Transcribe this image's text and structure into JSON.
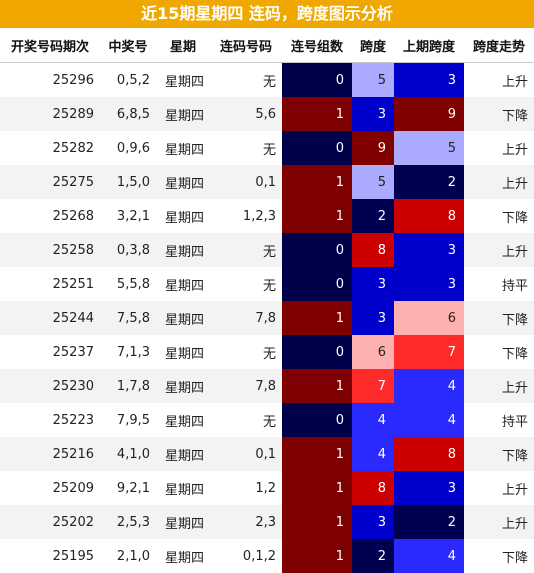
{
  "title": "近15期星期四 连码，跨度图示分析",
  "headers": [
    "开奖号码期次",
    "中奖号",
    "星期",
    "连码号码",
    "连号组数",
    "跨度",
    "上期跨度",
    "跨度走势"
  ],
  "colors": {
    "title_bg": "#f0a800",
    "group_0": "#00004a",
    "group_1": "#7e0000",
    "heat_scale": {
      "2": "#000050",
      "3": "#0000cc",
      "4": "#2a2aff",
      "5": "#aaaaff",
      "6": "#ffb0b0",
      "7": "#ff2a2a",
      "8": "#cc0000",
      "9": "#800000"
    }
  },
  "rows": [
    {
      "period": "25296",
      "numbers": "0,5,2",
      "weekday": "星期四",
      "consecutive": "无",
      "groups": "0",
      "span": "5",
      "prev_span": "3",
      "trend": "上升"
    },
    {
      "period": "25289",
      "numbers": "6,8,5",
      "weekday": "星期四",
      "consecutive": "5,6",
      "groups": "1",
      "span": "3",
      "prev_span": "9",
      "trend": "下降"
    },
    {
      "period": "25282",
      "numbers": "0,9,6",
      "weekday": "星期四",
      "consecutive": "无",
      "groups": "0",
      "span": "9",
      "prev_span": "5",
      "trend": "上升"
    },
    {
      "period": "25275",
      "numbers": "1,5,0",
      "weekday": "星期四",
      "consecutive": "0,1",
      "groups": "1",
      "span": "5",
      "prev_span": "2",
      "trend": "上升"
    },
    {
      "period": "25268",
      "numbers": "3,2,1",
      "weekday": "星期四",
      "consecutive": "1,2,3",
      "groups": "1",
      "span": "2",
      "prev_span": "8",
      "trend": "下降"
    },
    {
      "period": "25258",
      "numbers": "0,3,8",
      "weekday": "星期四",
      "consecutive": "无",
      "groups": "0",
      "span": "8",
      "prev_span": "3",
      "trend": "上升"
    },
    {
      "period": "25251",
      "numbers": "5,5,8",
      "weekday": "星期四",
      "consecutive": "无",
      "groups": "0",
      "span": "3",
      "prev_span": "3",
      "trend": "持平"
    },
    {
      "period": "25244",
      "numbers": "7,5,8",
      "weekday": "星期四",
      "consecutive": "7,8",
      "groups": "1",
      "span": "3",
      "prev_span": "6",
      "trend": "下降"
    },
    {
      "period": "25237",
      "numbers": "7,1,3",
      "weekday": "星期四",
      "consecutive": "无",
      "groups": "0",
      "span": "6",
      "prev_span": "7",
      "trend": "下降"
    },
    {
      "period": "25230",
      "numbers": "1,7,8",
      "weekday": "星期四",
      "consecutive": "7,8",
      "groups": "1",
      "span": "7",
      "prev_span": "4",
      "trend": "上升"
    },
    {
      "period": "25223",
      "numbers": "7,9,5",
      "weekday": "星期四",
      "consecutive": "无",
      "groups": "0",
      "span": "4",
      "prev_span": "4",
      "trend": "持平"
    },
    {
      "period": "25216",
      "numbers": "4,1,0",
      "weekday": "星期四",
      "consecutive": "0,1",
      "groups": "1",
      "span": "4",
      "prev_span": "8",
      "trend": "下降"
    },
    {
      "period": "25209",
      "numbers": "9,2,1",
      "weekday": "星期四",
      "consecutive": "1,2",
      "groups": "1",
      "span": "8",
      "prev_span": "3",
      "trend": "上升"
    },
    {
      "period": "25202",
      "numbers": "2,5,3",
      "weekday": "星期四",
      "consecutive": "2,3",
      "groups": "1",
      "span": "3",
      "prev_span": "2",
      "trend": "上升"
    },
    {
      "period": "25195",
      "numbers": "2,1,0",
      "weekday": "星期四",
      "consecutive": "0,1,2",
      "groups": "1",
      "span": "2",
      "prev_span": "4",
      "trend": "下降"
    }
  ]
}
